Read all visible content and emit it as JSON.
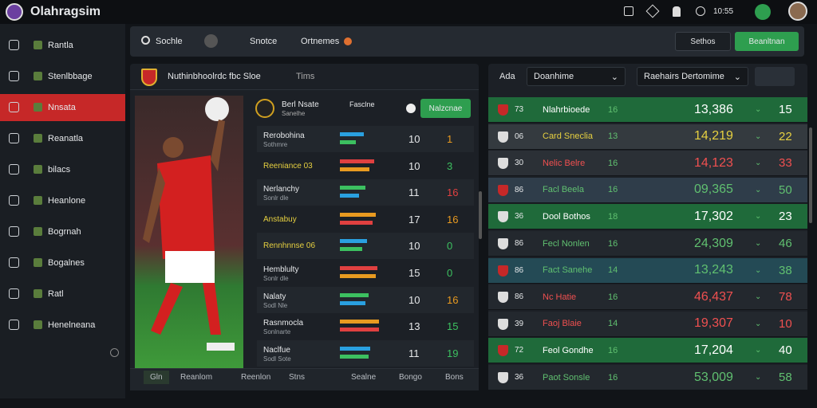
{
  "top_bar": {
    "title": "Olahragsim",
    "time": "10:55"
  },
  "sidebar": [
    "Rantla",
    "Stenlbbage",
    "Nnsata",
    "Reanatla",
    "bilacs",
    "Heanlone",
    "Bogrnah",
    "Bogalnes",
    "Ratl",
    "Henelneana"
  ],
  "sidebar_active": 2,
  "toolbar": {
    "search": "Sochle",
    "item": "Snotce",
    "options": "Ortnemes",
    "settings": "Sethos",
    "primary": "Beanltnan"
  },
  "center": {
    "title": "Nuthinbhoolrdc fbc Sloe",
    "tab": "Tims",
    "match": "Berl Nsate",
    "match_sub": "Sanelhe",
    "opponent": "Fasclne",
    "button": "Nalzcnae",
    "rows": [
      {
        "name": "Rerobohina",
        "sub": "Sothmre",
        "value": "10",
        "score": "1",
        "color": "#e89a20"
      },
      {
        "name": "Reeniance 03",
        "sub": "",
        "value": "10",
        "score": "3",
        "color": "#3cc060"
      },
      {
        "name": "Nerlanchy",
        "sub": "Sonlr dle",
        "value": "11",
        "score": "16",
        "color": "#e04040"
      },
      {
        "name": "Anstabuy",
        "sub": "",
        "value": "17",
        "score": "16",
        "color": "#e89a20"
      },
      {
        "name": "Rennhnnse 06",
        "sub": "",
        "value": "10",
        "score": "0",
        "color": "#3cc060"
      },
      {
        "name": "Hemblulty",
        "sub": "Sonlr dle",
        "value": "15",
        "score": "0",
        "color": "#3cc060"
      },
      {
        "name": "Nalaty",
        "sub": "Sodl Nle",
        "value": "10",
        "score": "16",
        "color": "#e89a20"
      },
      {
        "name": "Rasnmocla",
        "sub": "Sonlnarte",
        "value": "13",
        "score": "15",
        "color": "#3cc060"
      },
      {
        "name": "Naclfue",
        "sub": "Sodl Sote",
        "value": "11",
        "score": "19",
        "color": "#3cc060"
      }
    ],
    "tabs": [
      "Gln",
      "Reanlom",
      "Reenlon",
      "Stns",
      "Sealne",
      "Bongo",
      "Bons"
    ]
  },
  "right": {
    "label": "Ada",
    "dropdown1": "Doanhime",
    "dropdown2": "Raehairs Dertomime",
    "rows": [
      {
        "rank": "73",
        "name": "Nlahrbioede",
        "num": "16",
        "value": "13,386",
        "change": "15",
        "bg": "#1f6a3a",
        "tc": "#ffffff"
      },
      {
        "rank": "06",
        "name": "Card Sneclia",
        "num": "13",
        "value": "14,219",
        "change": "22",
        "bg": "#343a3f",
        "tc": "#e6d040"
      },
      {
        "rank": "30",
        "name": "Nelic Belre",
        "num": "16",
        "value": "14,123",
        "change": "33",
        "bg": "#2b3036",
        "tc": "#f05050"
      },
      {
        "rank": "86",
        "name": "Facl Beela",
        "num": "16",
        "value": "09,365",
        "change": "50",
        "bg": "#2f3d4a",
        "tc": "#60c070"
      },
      {
        "rank": "36",
        "name": "Dool Bothos",
        "num": "18",
        "value": "17,302",
        "change": "23",
        "bg": "#1f6a3a",
        "tc": "#ffffff"
      },
      {
        "rank": "86",
        "name": "Fecl Nonlen",
        "num": "16",
        "value": "24,309",
        "change": "46",
        "bg": "#23282e",
        "tc": "#60c070"
      },
      {
        "rank": "86",
        "name": "Fact Sanehe",
        "num": "14",
        "value": "13,243",
        "change": "38",
        "bg": "#244a55",
        "tc": "#60c070"
      },
      {
        "rank": "86",
        "name": "Nc Hatie",
        "num": "16",
        "value": "46,437",
        "change": "78",
        "bg": "#23282e",
        "tc": "#f05050"
      },
      {
        "rank": "39",
        "name": "Faoj Blaie",
        "num": "14",
        "value": "19,307",
        "change": "10",
        "bg": "#23282e",
        "tc": "#f05050"
      },
      {
        "rank": "72",
        "name": "Feol Gondhe",
        "num": "16",
        "value": "17,204",
        "change": "40",
        "bg": "#1f6a3a",
        "tc": "#ffffff"
      },
      {
        "rank": "36",
        "name": "Paot Sonsle",
        "num": "16",
        "value": "53,009",
        "change": "58",
        "bg": "#23282e",
        "tc": "#60c070"
      }
    ]
  }
}
